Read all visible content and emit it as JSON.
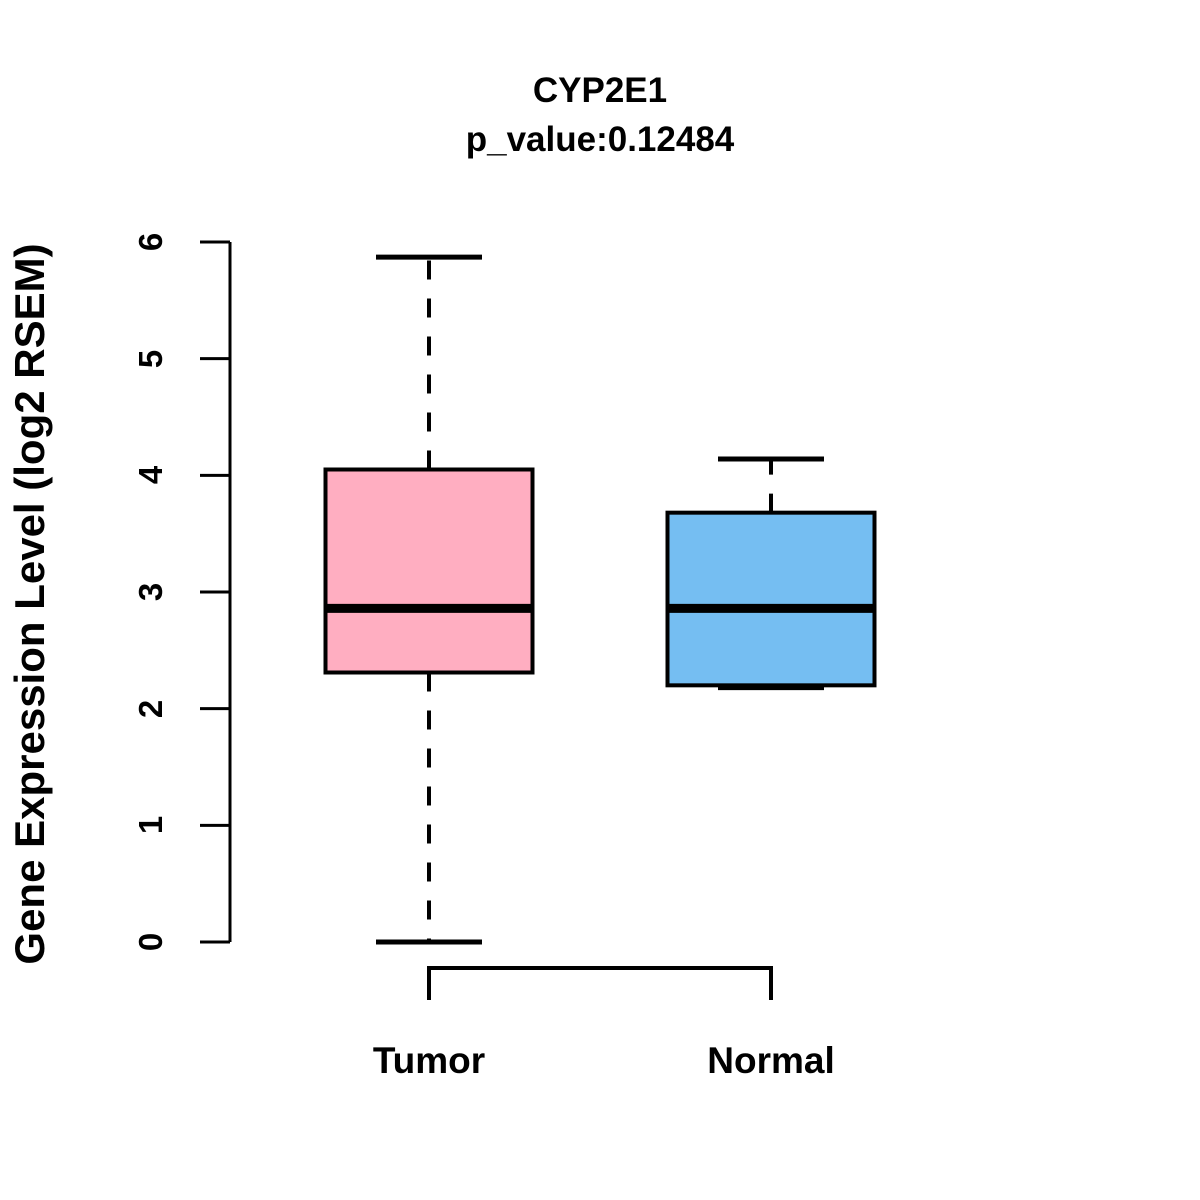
{
  "chart_data": {
    "type": "boxplot",
    "title": "CYP2E1",
    "subtitle": "p_value:0.12484",
    "ylabel": "Gene Expression Level (log2 RSEM)",
    "xlabel": "",
    "ylim": [
      0,
      6
    ],
    "yticks": [
      0,
      1,
      2,
      3,
      4,
      5,
      6
    ],
    "grid": false,
    "legend": "none",
    "categories": [
      "Tumor",
      "Normal"
    ],
    "series": [
      {
        "name": "Tumor",
        "fill_color": "#FFAEC1",
        "stats": {
          "whisker_low": 0.0,
          "q1": 2.31,
          "median": 2.86,
          "q3": 4.05,
          "whisker_high": 5.87
        }
      },
      {
        "name": "Normal",
        "fill_color": "#75BEF2",
        "stats": {
          "whisker_low": 2.18,
          "q1": 2.2,
          "median": 2.86,
          "q3": 3.68,
          "whisker_high": 4.14
        }
      }
    ],
    "style": {
      "axis_color": "#000000",
      "box_border_color": "#000000",
      "median_color": "#000000",
      "whisker_color": "#000000",
      "whisker_line_style": "dashed",
      "text_color": "#000000",
      "background": "#FFFFFF"
    }
  }
}
